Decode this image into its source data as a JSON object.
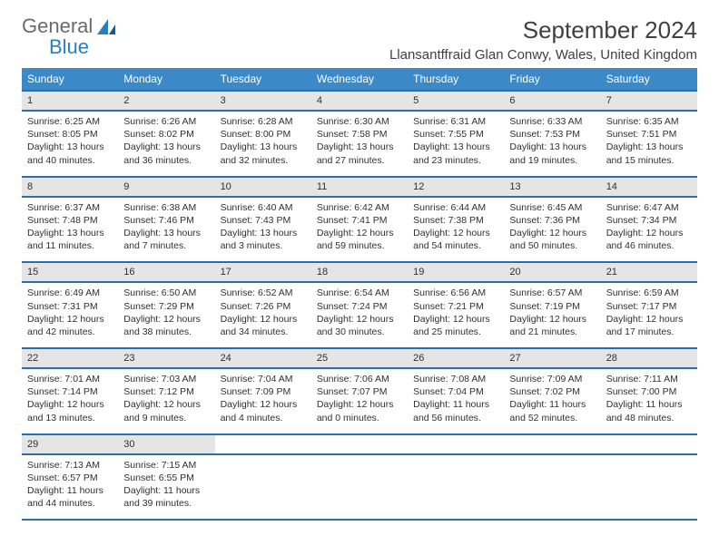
{
  "logo": {
    "word1": "General",
    "word2": "Blue"
  },
  "title": "September 2024",
  "location": "Llansantffraid Glan Conwy, Wales, United Kingdom",
  "colors": {
    "header_bg": "#3b89c6",
    "row_border": "#2b6ea8",
    "daynum_bg": "#e5e5e5",
    "text": "#303030",
    "logo_gray": "#6b6b6b",
    "logo_blue": "#2b7fbf"
  },
  "weekdays": [
    "Sunday",
    "Monday",
    "Tuesday",
    "Wednesday",
    "Thursday",
    "Friday",
    "Saturday"
  ],
  "days": [
    {
      "n": "1",
      "sr": "6:25 AM",
      "ss": "8:05 PM",
      "dl": "13 hours and 40 minutes."
    },
    {
      "n": "2",
      "sr": "6:26 AM",
      "ss": "8:02 PM",
      "dl": "13 hours and 36 minutes."
    },
    {
      "n": "3",
      "sr": "6:28 AM",
      "ss": "8:00 PM",
      "dl": "13 hours and 32 minutes."
    },
    {
      "n": "4",
      "sr": "6:30 AM",
      "ss": "7:58 PM",
      "dl": "13 hours and 27 minutes."
    },
    {
      "n": "5",
      "sr": "6:31 AM",
      "ss": "7:55 PM",
      "dl": "13 hours and 23 minutes."
    },
    {
      "n": "6",
      "sr": "6:33 AM",
      "ss": "7:53 PM",
      "dl": "13 hours and 19 minutes."
    },
    {
      "n": "7",
      "sr": "6:35 AM",
      "ss": "7:51 PM",
      "dl": "13 hours and 15 minutes."
    },
    {
      "n": "8",
      "sr": "6:37 AM",
      "ss": "7:48 PM",
      "dl": "13 hours and 11 minutes."
    },
    {
      "n": "9",
      "sr": "6:38 AM",
      "ss": "7:46 PM",
      "dl": "13 hours and 7 minutes."
    },
    {
      "n": "10",
      "sr": "6:40 AM",
      "ss": "7:43 PM",
      "dl": "13 hours and 3 minutes."
    },
    {
      "n": "11",
      "sr": "6:42 AM",
      "ss": "7:41 PM",
      "dl": "12 hours and 59 minutes."
    },
    {
      "n": "12",
      "sr": "6:44 AM",
      "ss": "7:38 PM",
      "dl": "12 hours and 54 minutes."
    },
    {
      "n": "13",
      "sr": "6:45 AM",
      "ss": "7:36 PM",
      "dl": "12 hours and 50 minutes."
    },
    {
      "n": "14",
      "sr": "6:47 AM",
      "ss": "7:34 PM",
      "dl": "12 hours and 46 minutes."
    },
    {
      "n": "15",
      "sr": "6:49 AM",
      "ss": "7:31 PM",
      "dl": "12 hours and 42 minutes."
    },
    {
      "n": "16",
      "sr": "6:50 AM",
      "ss": "7:29 PM",
      "dl": "12 hours and 38 minutes."
    },
    {
      "n": "17",
      "sr": "6:52 AM",
      "ss": "7:26 PM",
      "dl": "12 hours and 34 minutes."
    },
    {
      "n": "18",
      "sr": "6:54 AM",
      "ss": "7:24 PM",
      "dl": "12 hours and 30 minutes."
    },
    {
      "n": "19",
      "sr": "6:56 AM",
      "ss": "7:21 PM",
      "dl": "12 hours and 25 minutes."
    },
    {
      "n": "20",
      "sr": "6:57 AM",
      "ss": "7:19 PM",
      "dl": "12 hours and 21 minutes."
    },
    {
      "n": "21",
      "sr": "6:59 AM",
      "ss": "7:17 PM",
      "dl": "12 hours and 17 minutes."
    },
    {
      "n": "22",
      "sr": "7:01 AM",
      "ss": "7:14 PM",
      "dl": "12 hours and 13 minutes."
    },
    {
      "n": "23",
      "sr": "7:03 AM",
      "ss": "7:12 PM",
      "dl": "12 hours and 9 minutes."
    },
    {
      "n": "24",
      "sr": "7:04 AM",
      "ss": "7:09 PM",
      "dl": "12 hours and 4 minutes."
    },
    {
      "n": "25",
      "sr": "7:06 AM",
      "ss": "7:07 PM",
      "dl": "12 hours and 0 minutes."
    },
    {
      "n": "26",
      "sr": "7:08 AM",
      "ss": "7:04 PM",
      "dl": "11 hours and 56 minutes."
    },
    {
      "n": "27",
      "sr": "7:09 AM",
      "ss": "7:02 PM",
      "dl": "11 hours and 52 minutes."
    },
    {
      "n": "28",
      "sr": "7:11 AM",
      "ss": "7:00 PM",
      "dl": "11 hours and 48 minutes."
    },
    {
      "n": "29",
      "sr": "7:13 AM",
      "ss": "6:57 PM",
      "dl": "11 hours and 44 minutes."
    },
    {
      "n": "30",
      "sr": "7:15 AM",
      "ss": "6:55 PM",
      "dl": "11 hours and 39 minutes."
    }
  ],
  "labels": {
    "sunrise": "Sunrise:",
    "sunset": "Sunset:",
    "daylight": "Daylight:"
  }
}
